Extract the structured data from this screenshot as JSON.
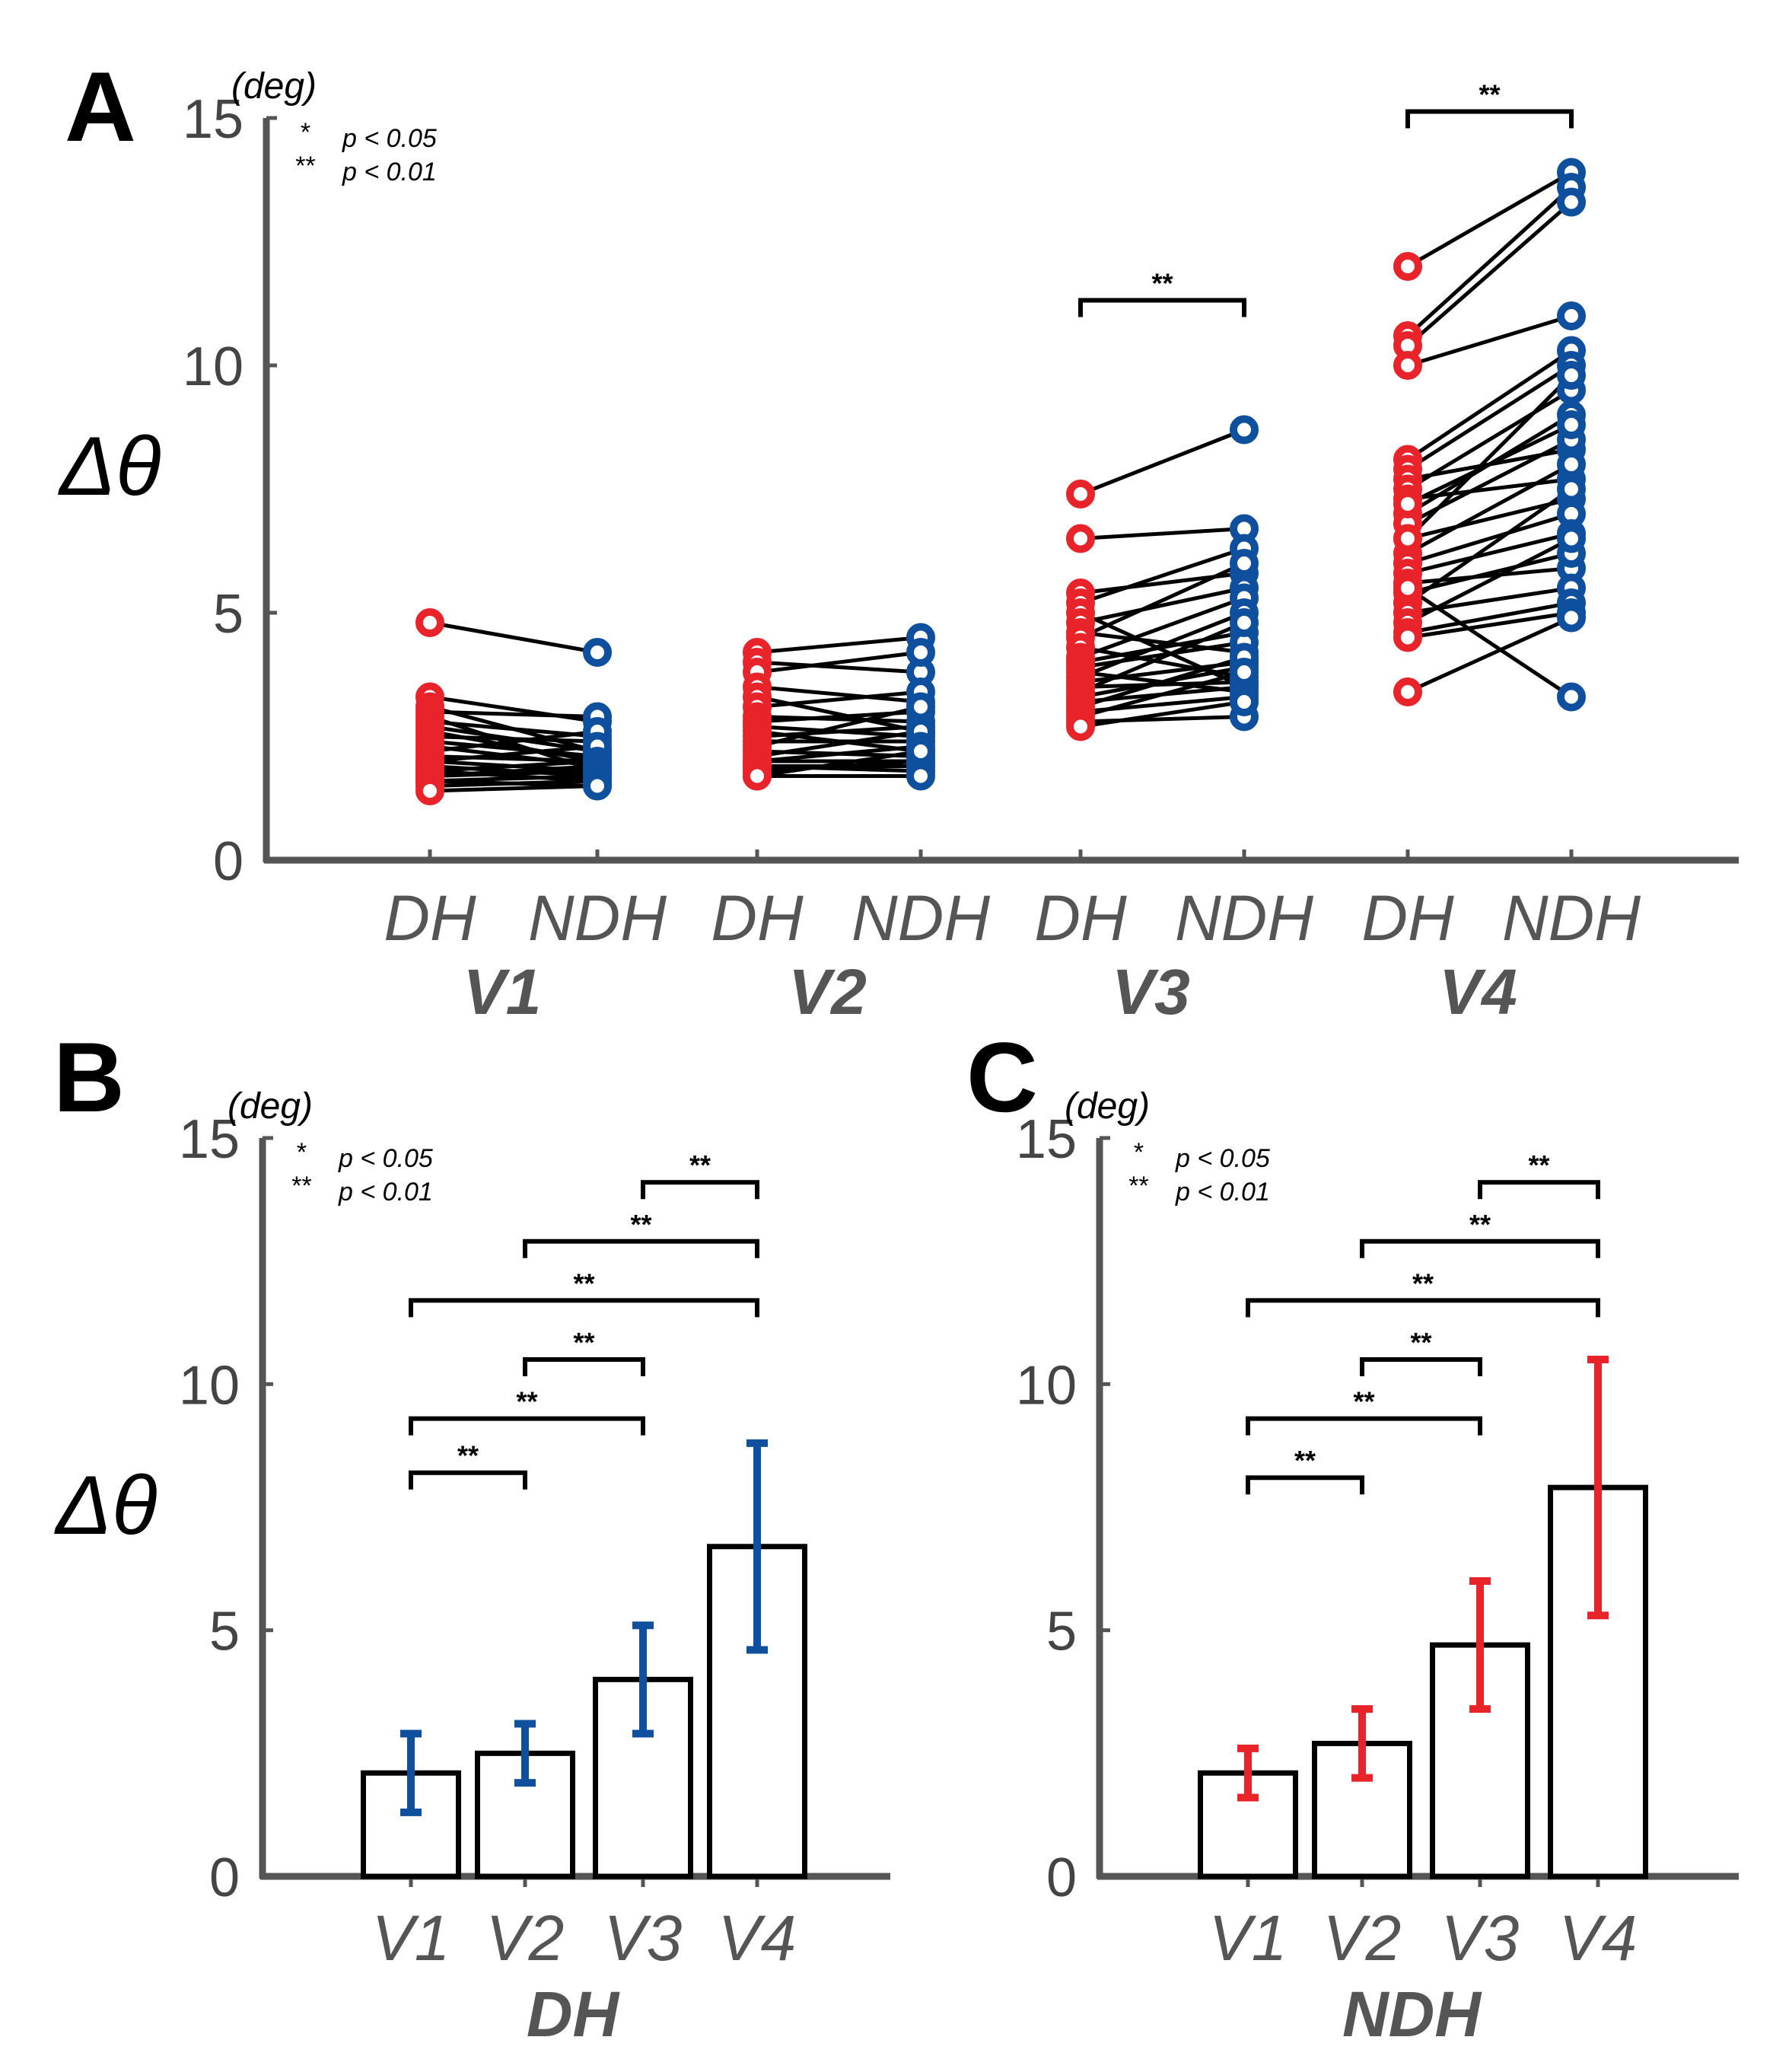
{
  "colors": {
    "dh": "#e8232a",
    "ndh": "#0e4f9e",
    "axis": "#555555",
    "line": "#000000"
  },
  "legend": {
    "single": "*",
    "single_text": "p < 0.05",
    "double": "**",
    "double_text": "p < 0.01"
  },
  "chart_data": [
    {
      "panel": "A",
      "type": "scatter",
      "description": "Paired per-subject values, DH (red) vs NDH (blue), joined by black lines, per visual area",
      "unit": "(deg)",
      "ylabel": "Δθ",
      "ylim": [
        0,
        15
      ],
      "yticks": [
        0,
        5,
        10,
        15
      ],
      "groups": [
        {
          "name": "V1",
          "categories": [
            "DH",
            "NDH"
          ],
          "significance": "",
          "pairs": [
            [
              4.8,
              4.2
            ],
            [
              3.3,
              2.8
            ],
            [
              3.1,
              2.2
            ],
            [
              3.0,
              2.9
            ],
            [
              2.9,
              1.8
            ],
            [
              2.8,
              2.5
            ],
            [
              2.7,
              2.2
            ],
            [
              2.6,
              2.0
            ],
            [
              2.5,
              2.4
            ],
            [
              2.4,
              2.1
            ],
            [
              2.3,
              1.9
            ],
            [
              2.2,
              2.6
            ],
            [
              2.1,
              2.0
            ],
            [
              2.0,
              1.8
            ],
            [
              2.0,
              2.3
            ],
            [
              1.9,
              1.7
            ],
            [
              1.8,
              2.0
            ],
            [
              1.8,
              1.6
            ],
            [
              1.7,
              1.9
            ],
            [
              1.7,
              1.8
            ],
            [
              1.6,
              1.7
            ],
            [
              1.6,
              1.5
            ],
            [
              1.5,
              1.6
            ],
            [
              1.4,
              1.5
            ]
          ]
        },
        {
          "name": "V2",
          "categories": [
            "DH",
            "NDH"
          ],
          "significance": "",
          "pairs": [
            [
              4.2,
              4.5
            ],
            [
              4.0,
              3.8
            ],
            [
              3.8,
              4.2
            ],
            [
              3.5,
              3.2
            ],
            [
              3.3,
              2.6
            ],
            [
              3.1,
              3.4
            ],
            [
              2.9,
              2.8
            ],
            [
              2.8,
              3.0
            ],
            [
              2.7,
              2.5
            ],
            [
              2.6,
              2.2
            ],
            [
              2.5,
              2.7
            ],
            [
              2.4,
              2.4
            ],
            [
              2.3,
              3.1
            ],
            [
              2.2,
              2.1
            ],
            [
              2.1,
              2.6
            ],
            [
              2.0,
              2.0
            ],
            [
              2.0,
              2.3
            ],
            [
              1.9,
              1.8
            ],
            [
              1.9,
              1.9
            ],
            [
              1.8,
              2.0
            ],
            [
              1.7,
              1.7
            ],
            [
              1.7,
              2.2
            ]
          ]
        },
        {
          "name": "V3",
          "categories": [
            "DH",
            "NDH"
          ],
          "significance": "**",
          "pairs": [
            [
              7.4,
              8.7
            ],
            [
              6.5,
              6.7
            ],
            [
              5.4,
              5.8
            ],
            [
              5.2,
              6.3
            ],
            [
              5.0,
              3.5
            ],
            [
              4.8,
              5.5
            ],
            [
              4.6,
              4.2
            ],
            [
              4.5,
              6.0
            ],
            [
              4.3,
              3.7
            ],
            [
              4.1,
              5.3
            ],
            [
              4.0,
              4.6
            ],
            [
              3.9,
              4.4
            ],
            [
              3.8,
              3.4
            ],
            [
              3.7,
              5.0
            ],
            [
              3.6,
              4.0
            ],
            [
              3.5,
              3.6
            ],
            [
              3.4,
              4.8
            ],
            [
              3.3,
              3.9
            ],
            [
              3.2,
              3.5
            ],
            [
              3.1,
              4.1
            ],
            [
              3.0,
              3.3
            ],
            [
              2.9,
              3.8
            ],
            [
              2.8,
              2.9
            ],
            [
              2.7,
              3.2
            ]
          ]
        },
        {
          "name": "V4",
          "categories": [
            "DH",
            "NDH"
          ],
          "significance": "**",
          "pairs": [
            [
              12.0,
              13.9
            ],
            [
              10.6,
              13.6
            ],
            [
              10.4,
              13.3
            ],
            [
              10.0,
              11.0
            ],
            [
              8.1,
              10.3
            ],
            [
              7.9,
              10.0
            ],
            [
              7.7,
              8.3
            ],
            [
              7.5,
              9.5
            ],
            [
              7.3,
              7.7
            ],
            [
              7.0,
              9.0
            ],
            [
              6.8,
              8.5
            ],
            [
              6.5,
              7.3
            ],
            [
              6.2,
              8.0
            ],
            [
              6.0,
              7.0
            ],
            [
              5.8,
              6.6
            ],
            [
              5.6,
              5.9
            ],
            [
              5.4,
              6.2
            ],
            [
              5.2,
              7.5
            ],
            [
              5.0,
              5.5
            ],
            [
              4.8,
              6.5
            ],
            [
              4.6,
              5.2
            ],
            [
              4.5,
              5.0
            ],
            [
              3.4,
              4.9
            ],
            [
              5.5,
              3.3
            ],
            [
              6.5,
              9.8
            ],
            [
              7.2,
              8.8
            ]
          ]
        }
      ],
      "group_labels": [
        "V1",
        "V2",
        "V3",
        "V4"
      ]
    },
    {
      "panel": "B",
      "type": "bar",
      "unit": "(deg)",
      "ylabel": "Δθ",
      "xlabel": "DH",
      "categories": [
        "V1",
        "V2",
        "V3",
        "V4"
      ],
      "values": [
        2.1,
        2.5,
        4.0,
        6.7
      ],
      "errors": [
        0.8,
        0.6,
        1.1,
        2.1
      ],
      "error_color": "ndh",
      "ylim": [
        0,
        15
      ],
      "yticks": [
        0,
        5,
        10,
        15
      ],
      "comparisons": [
        {
          "from": "V1",
          "to": "V2",
          "y": 8.2,
          "label": "**"
        },
        {
          "from": "V1",
          "to": "V3",
          "y": 9.3,
          "label": "**"
        },
        {
          "from": "V2",
          "to": "V3",
          "y": 10.5,
          "label": "**"
        },
        {
          "from": "V1",
          "to": "V4",
          "y": 11.7,
          "label": "**"
        },
        {
          "from": "V2",
          "to": "V4",
          "y": 12.9,
          "label": "**"
        },
        {
          "from": "V3",
          "to": "V4",
          "y": 14.1,
          "label": "**"
        }
      ]
    },
    {
      "panel": "C",
      "type": "bar",
      "unit": "(deg)",
      "ylabel": "",
      "xlabel": "NDH",
      "categories": [
        "V1",
        "V2",
        "V3",
        "V4"
      ],
      "values": [
        2.1,
        2.7,
        4.7,
        7.9
      ],
      "errors": [
        0.5,
        0.7,
        1.3,
        2.6
      ],
      "error_color": "dh",
      "ylim": [
        0,
        15
      ],
      "yticks": [
        0,
        5,
        10,
        15
      ],
      "comparisons": [
        {
          "from": "V1",
          "to": "V2",
          "y": 8.1,
          "label": "**"
        },
        {
          "from": "V1",
          "to": "V3",
          "y": 9.3,
          "label": "**"
        },
        {
          "from": "V2",
          "to": "V3",
          "y": 10.5,
          "label": "**"
        },
        {
          "from": "V1",
          "to": "V4",
          "y": 11.7,
          "label": "**"
        },
        {
          "from": "V2",
          "to": "V4",
          "y": 12.9,
          "label": "**"
        },
        {
          "from": "V3",
          "to": "V4",
          "y": 14.1,
          "label": "**"
        }
      ]
    }
  ]
}
